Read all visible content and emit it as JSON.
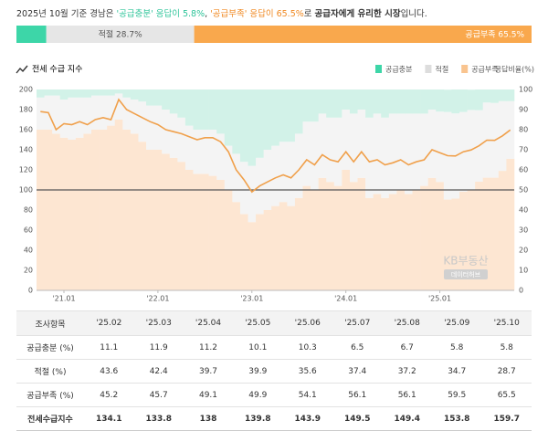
{
  "summary": {
    "parts": [
      "2025년 10월 기준 경남은 ",
      "'공급충분' 응답이 5.8%",
      ", ",
      "'공급부족' 응답이 65.5%",
      "로 ",
      "공급자에게 유리한 시장",
      "입니다."
    ]
  },
  "chart_data": [
    {
      "type": "stacked_bar_h",
      "xlim": [
        0,
        100
      ],
      "series": [
        {
          "name": "공급충분",
          "color": "#3dd6a8",
          "values": [
            5.8
          ]
        },
        {
          "name": "적절",
          "color": "#e6e6e6",
          "values": [
            28.7
          ],
          "value_labels": [
            "적절 28.7%"
          ]
        },
        {
          "name": "공급부족",
          "color": "#f9a84d",
          "values": [
            65.5
          ],
          "value_labels": [
            "공급부족 65.5%"
          ]
        }
      ]
    },
    {
      "type": "combo",
      "title": "전세 수급 지수",
      "y2_label": "응답비율(%)",
      "categories": [
        null,
        null,
        null,
        "'21.01",
        null,
        null,
        null,
        null,
        null,
        null,
        null,
        null,
        null,
        null,
        null,
        "'22.01",
        null,
        null,
        null,
        null,
        null,
        null,
        null,
        null,
        null,
        null,
        null,
        "'23.01",
        null,
        null,
        null,
        null,
        null,
        null,
        null,
        null,
        null,
        null,
        null,
        "'24.01",
        null,
        null,
        null,
        null,
        null,
        null,
        null,
        null,
        null,
        null,
        null,
        "'25.01",
        null,
        null,
        null,
        null,
        null,
        null,
        null,
        null,
        null
      ],
      "ylim": [
        0,
        200
      ],
      "yticks": [
        0,
        20,
        40,
        60,
        80,
        100,
        120,
        140,
        160,
        180,
        200
      ],
      "y2lim": [
        0,
        100
      ],
      "y2ticks": [
        0,
        10,
        20,
        30,
        40,
        50,
        60,
        70,
        80,
        90,
        100
      ],
      "hline": 100,
      "grid": false,
      "watermark": [
        "KB부동산",
        "데이터허브"
      ],
      "series": [
        {
          "name": "공급충분",
          "type": "bar",
          "axis": "y2",
          "color": "#d2f2e8",
          "legend_color": "#3dd6a8",
          "values": [
            4,
            3,
            3,
            5,
            4,
            4,
            4,
            3,
            3,
            3,
            2,
            4,
            5,
            6,
            8,
            8,
            10,
            12,
            14,
            18,
            20,
            20,
            20,
            22,
            28,
            32,
            36,
            38,
            34,
            30,
            28,
            26,
            26,
            22,
            16,
            16,
            12,
            14,
            14,
            10,
            12,
            10,
            14,
            12,
            14,
            12,
            12,
            12,
            12,
            12,
            10,
            11,
            11.1,
            11.9,
            11.2,
            10.1,
            10.3,
            6.5,
            6.7,
            5.8,
            5.8
          ]
        },
        {
          "name": "적절",
          "type": "bar",
          "axis": "y2",
          "color": "#f4f4f4",
          "legend_color": "#dddddd",
          "values": [
            16,
            17,
            19,
            19,
            21,
            20,
            18,
            17,
            17,
            15,
            13,
            16,
            17,
            20,
            22,
            22,
            22,
            22,
            22,
            22,
            22,
            22,
            23,
            23,
            22,
            24,
            26,
            28,
            28,
            30,
            30,
            30,
            32,
            32,
            32,
            34,
            32,
            32,
            34,
            30,
            34,
            34,
            40,
            40,
            40,
            40,
            38,
            40,
            38,
            36,
            34,
            35,
            43.6,
            42.4,
            39.7,
            39.9,
            35.6,
            37.4,
            37.2,
            34.7,
            28.7
          ]
        },
        {
          "name": "공급부족",
          "type": "bar",
          "axis": "y2",
          "color": "#fde6d2",
          "legend_color": "#f9c48f",
          "values": [
            80,
            80,
            78,
            76,
            75,
            76,
            78,
            80,
            80,
            82,
            85,
            80,
            78,
            74,
            70,
            70,
            68,
            66,
            64,
            60,
            58,
            58,
            57,
            55,
            50,
            44,
            38,
            34,
            38,
            40,
            42,
            44,
            42,
            46,
            52,
            50,
            56,
            54,
            52,
            60,
            54,
            56,
            46,
            48,
            46,
            48,
            50,
            48,
            50,
            52,
            56,
            54,
            45.2,
            45.7,
            49.1,
            49.9,
            54.1,
            56.1,
            56.1,
            59.5,
            65.5
          ]
        },
        {
          "type": "line",
          "axis": "y",
          "color": "#f0a04b",
          "values": [
            178,
            177,
            160,
            166,
            165,
            168,
            165,
            170,
            172,
            170,
            190,
            180,
            176,
            172,
            168,
            165,
            160,
            158,
            156,
            153,
            150,
            152,
            152,
            148,
            138,
            120,
            110,
            98,
            104,
            108,
            112,
            115,
            112,
            120,
            130,
            125,
            135,
            130,
            128,
            138,
            128,
            138,
            128,
            130,
            125,
            127,
            130,
            125,
            128,
            130,
            140,
            137,
            134.1,
            133.8,
            138,
            139.8,
            143.9,
            149.5,
            149.4,
            153.8,
            159.7
          ]
        }
      ]
    }
  ],
  "table": {
    "header": [
      "조사항목",
      "'25.02",
      "'25.03",
      "'25.04",
      "'25.05",
      "'25.06",
      "'25.07",
      "'25.08",
      "'25.09",
      "'25.10"
    ],
    "rows": [
      {
        "label": "공급충분 (%)",
        "values": [
          11.1,
          11.9,
          11.2,
          10.1,
          10.3,
          6.5,
          6.7,
          5.8,
          5.8
        ]
      },
      {
        "label": "적절 (%)",
        "values": [
          43.6,
          42.4,
          39.7,
          39.9,
          35.6,
          37.4,
          37.2,
          34.7,
          28.7
        ]
      },
      {
        "label": "공급부족 (%)",
        "values": [
          45.2,
          45.7,
          49.1,
          49.9,
          54.1,
          56.1,
          56.1,
          59.5,
          65.5
        ]
      },
      {
        "label": "전세수급지수",
        "values": [
          134.1,
          133.8,
          138,
          139.8,
          143.9,
          149.5,
          149.4,
          153.8,
          159.7
        ]
      }
    ]
  }
}
